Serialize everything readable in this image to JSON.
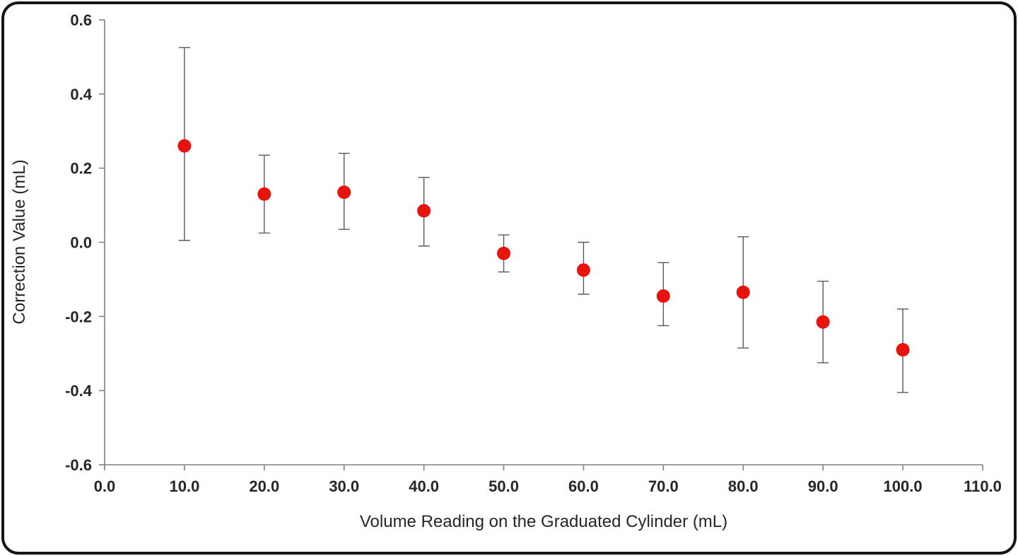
{
  "frame": {
    "border_color": "#151515",
    "background": "#ffffff"
  },
  "chart_data": {
    "type": "scatter",
    "title": "",
    "xlabel": "Volume Reading on the Graduated Cylinder (mL)",
    "ylabel": "Correction Value (mL)",
    "xlim": [
      0,
      110
    ],
    "ylim": [
      -0.6,
      0.6
    ],
    "grid": false,
    "legend": "none",
    "x_ticks": {
      "values": [
        0,
        10,
        20,
        30,
        40,
        50,
        60,
        70,
        80,
        90,
        100,
        110
      ],
      "labels": [
        "0.0",
        "10.0",
        "20.0",
        "30.0",
        "40.0",
        "50.0",
        "60.0",
        "70.0",
        "80.0",
        "90.0",
        "100.0",
        "110.0"
      ]
    },
    "y_ticks": {
      "values": [
        -0.6,
        -0.4,
        -0.2,
        0.0,
        0.2,
        0.4,
        0.6
      ],
      "labels": [
        "-0.6",
        "-0.4",
        "-0.2",
        "0.0",
        "0.2",
        "0.4",
        "0.6"
      ]
    },
    "axis_color": "#808080",
    "tick_label_color": "#262626",
    "series": [
      {
        "name": "correction-value-vs-volume",
        "marker": "circle",
        "marker_color": "#e8130d",
        "error_bar_color": "#595959",
        "points": [
          {
            "x": 10,
            "y": 0.26,
            "err_low": 0.005,
            "err_high": 0.525
          },
          {
            "x": 20,
            "y": 0.13,
            "err_low": 0.025,
            "err_high": 0.235
          },
          {
            "x": 30,
            "y": 0.135,
            "err_low": 0.035,
            "err_high": 0.24
          },
          {
            "x": 40,
            "y": 0.085,
            "err_low": -0.01,
            "err_high": 0.175
          },
          {
            "x": 50,
            "y": -0.03,
            "err_low": -0.08,
            "err_high": 0.02
          },
          {
            "x": 60,
            "y": -0.075,
            "err_low": -0.14,
            "err_high": 0.0
          },
          {
            "x": 70,
            "y": -0.145,
            "err_low": -0.225,
            "err_high": -0.055
          },
          {
            "x": 80,
            "y": -0.135,
            "err_low": -0.285,
            "err_high": 0.015
          },
          {
            "x": 90,
            "y": -0.215,
            "err_low": -0.325,
            "err_high": -0.105
          },
          {
            "x": 100,
            "y": -0.29,
            "err_low": -0.405,
            "err_high": -0.18
          }
        ]
      }
    ]
  }
}
